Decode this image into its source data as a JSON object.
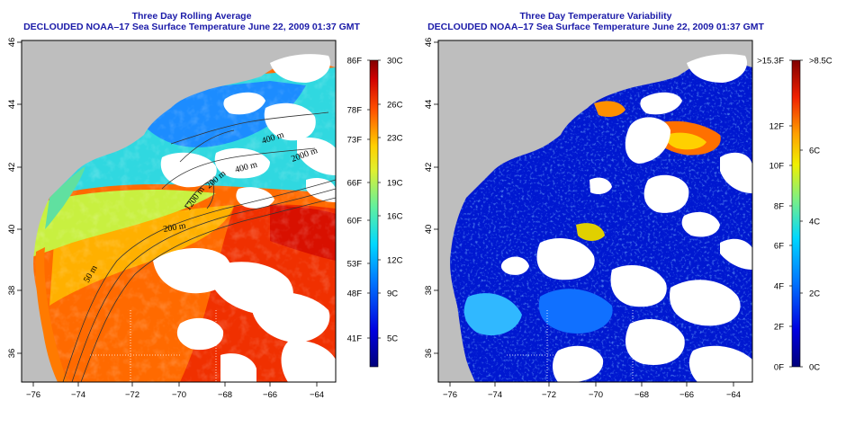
{
  "left_panel": {
    "title_line1": "Three Day Rolling Average",
    "title_line2": "DECLOUDED NOAA–17 Sea Surface Temperature June 22, 2009 01:37 GMT",
    "lon_ticks": [
      "−76",
      "−74",
      "−72",
      "−70",
      "−68",
      "−66",
      "−64"
    ],
    "lat_ticks": [
      "46",
      "44",
      "42",
      "40",
      "38",
      "36"
    ],
    "contour_labels": [
      "400 m",
      "400 m",
      "2000 m",
      "200 m",
      "1200 m",
      "200 m",
      "50 m"
    ],
    "colorbar": {
      "f_labels": [
        "86F",
        "78F",
        "73F",
        "66F",
        "60F",
        "53F",
        "48F",
        "41F"
      ],
      "c_labels": [
        "30C",
        "26C",
        "23C",
        "19C",
        "16C",
        "12C",
        "9C",
        "5C"
      ]
    }
  },
  "right_panel": {
    "title_line1": "Three Day Temperature Variability",
    "title_line2": "DECLOUDED NOAA–17 Sea Surface Temperature June 22, 2009 01:37 GMT",
    "lon_ticks": [
      "−76",
      "−74",
      "−72",
      "−70",
      "−68",
      "−66",
      "−64"
    ],
    "lat_ticks": [
      "46",
      "44",
      "42",
      "40",
      "38",
      "36"
    ],
    "colorbar": {
      "f_labels": [
        ">15.3F",
        "12F",
        "10F",
        "8F",
        "6F",
        "4F",
        "2F",
        "0F"
      ],
      "c_labels": [
        ">8.5C",
        "6C",
        "4C",
        "2C",
        "0C"
      ]
    }
  },
  "colors": {
    "land": "#bebebe",
    "cloud": "#ffffff",
    "title": "#1a1aa8"
  }
}
